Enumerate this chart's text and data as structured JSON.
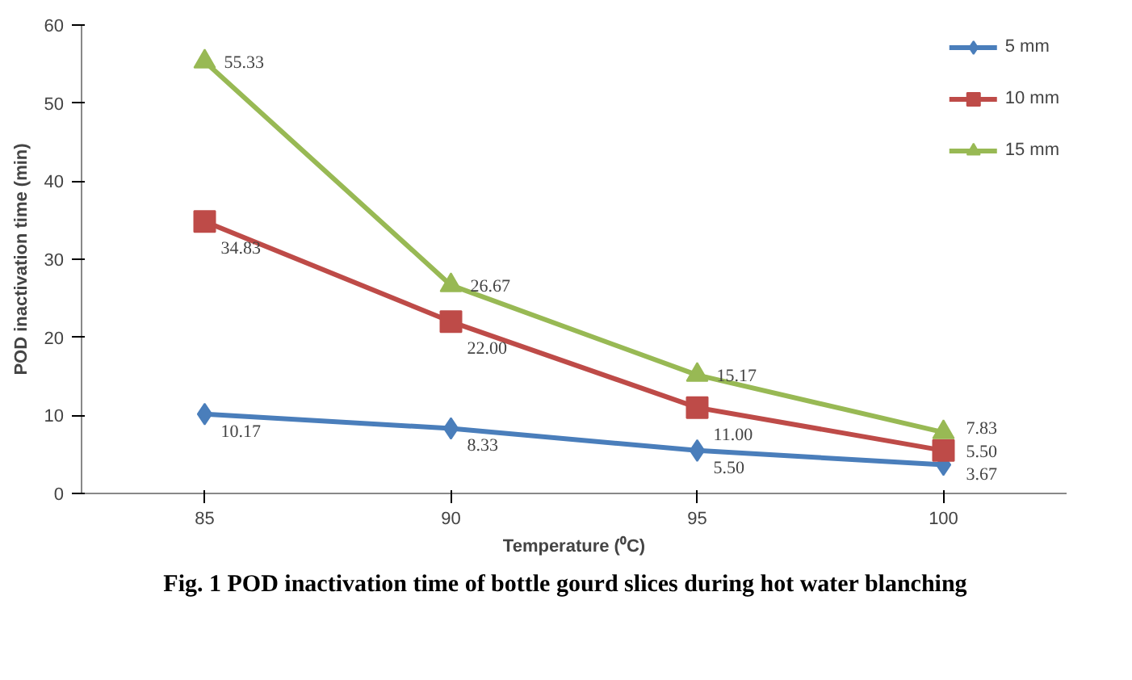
{
  "chart_data": {
    "type": "line",
    "xlabel": "Temperature (⁰C)",
    "ylabel": "POD inactivation time (min)",
    "categories": [
      "85",
      "90",
      "95",
      "100"
    ],
    "series": [
      {
        "name": "5 mm",
        "color": "#4a7ebb",
        "values": [
          10.17,
          8.33,
          5.5,
          3.67
        ],
        "marker": "diamond",
        "value_labels": [
          "10.17",
          "8.33",
          "5.50",
          "3.67"
        ]
      },
      {
        "name": "10 mm",
        "color": "#be4b48",
        "values": [
          34.83,
          22.0,
          11.0,
          5.5
        ],
        "marker": "square",
        "value_labels": [
          "34.83",
          "22.00",
          "11.00",
          "5.50"
        ]
      },
      {
        "name": "15 mm",
        "color": "#98b954",
        "values": [
          55.33,
          26.67,
          15.17,
          7.83
        ],
        "marker": "triangle",
        "value_labels": [
          "55.33",
          "26.67",
          "15.17",
          "7.83"
        ]
      }
    ],
    "ylim": [
      0,
      60
    ],
    "yticks": [
      0,
      10,
      20,
      30,
      40,
      50,
      60
    ],
    "grid": false,
    "legend": "top right",
    "line_style": "solid",
    "annotations": [
      "Fig. 1  POD inactivation time of bottle gourd slices during hot water blanching"
    ]
  }
}
